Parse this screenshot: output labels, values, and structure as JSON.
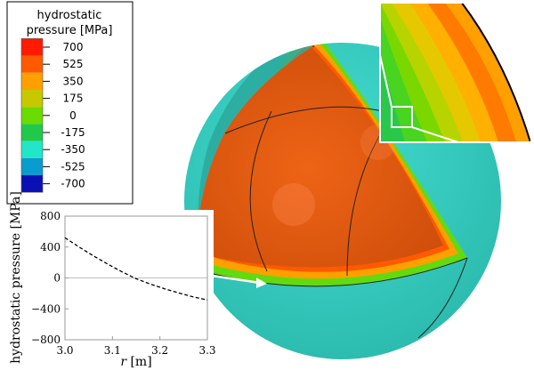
{
  "legend": {
    "title_line1": "hydrostatic",
    "title_line2": "pressure  [MPa]",
    "levels": [
      {
        "label": "700",
        "color": "#ff1a00"
      },
      {
        "label": "525",
        "color": "#ff5a00"
      },
      {
        "label": "350",
        "color": "#ffa000"
      },
      {
        "label": "175",
        "color": "#c8c800"
      },
      {
        "label": "0",
        "color": "#6adc00"
      },
      {
        "label": "-175",
        "color": "#22c84a"
      },
      {
        "label": "-350",
        "color": "#22e6c8"
      },
      {
        "label": "-525",
        "color": "#0a9bd0"
      },
      {
        "label": "-700",
        "color": "#0a10b4"
      }
    ]
  },
  "chart_data": {
    "type": "line",
    "xlabel_var": "r",
    "xlabel_unit": " [m]",
    "ylabel": "hydrostatic pressure [MPa]",
    "xlim": [
      3.0,
      3.3
    ],
    "ylim": [
      -800,
      800
    ],
    "xticks": [
      "3.0",
      "3.1",
      "3.2",
      "3.3"
    ],
    "yticks": [
      "800",
      "400",
      "0",
      "−400",
      "−800"
    ],
    "series": [
      {
        "x": [
          3.0,
          3.03,
          3.06,
          3.09,
          3.12,
          3.15,
          3.18,
          3.21,
          3.24,
          3.27,
          3.3
        ],
        "y": [
          520,
          400,
          285,
          180,
          80,
          -10,
          -80,
          -140,
          -195,
          -245,
          -285
        ]
      }
    ]
  },
  "colors": {
    "shell": "#3ccdbf",
    "core": "#e0560e"
  }
}
